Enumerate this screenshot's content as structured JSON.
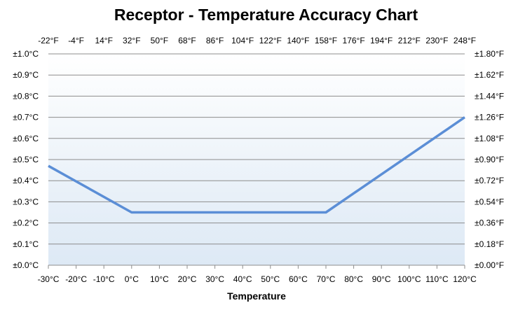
{
  "chart_data": {
    "type": "line",
    "title": "Receptor - Temperature Accuracy Chart",
    "xlabel": "Temperature",
    "ylabel": "",
    "x_ticks_bottom": [
      "-30°C",
      "-20°C",
      "-10°C",
      "0°C",
      "10°C",
      "20°C",
      "30°C",
      "40°C",
      "50°C",
      "60°C",
      "70°C",
      "80°C",
      "90°C",
      "100°C",
      "110°C",
      "120°C"
    ],
    "x_ticks_top": [
      "-22°F",
      "-4°F",
      "14°F",
      "32°F",
      "50°F",
      "68°F",
      "86°F",
      "104°F",
      "122°F",
      "140°F",
      "158°F",
      "176°F",
      "194°F",
      "212°F",
      "230°F",
      "248°F"
    ],
    "y_ticks_left": [
      "±0.0°C",
      "±0.1°C",
      "±0.2°C",
      "±0.3°C",
      "±0.4°C",
      "±0.5°C",
      "±0.6°C",
      "±0.7°C",
      "±0.8°C",
      "±0.9°C",
      "±1.0°C"
    ],
    "y_ticks_right": [
      "±0.00°F",
      "±0.18°F",
      "±0.36°F",
      "±0.54°F",
      "±0.72°F",
      "±0.90°F",
      "±1.08°F",
      "±1.26°F",
      "±1.44°F",
      "±1.62°F",
      "±1.80°F"
    ],
    "xlim": [
      -30,
      120
    ],
    "ylim": [
      0,
      1.0
    ],
    "grid": true,
    "legend": "none",
    "line_color": "#5b8ed6",
    "series": [
      {
        "x": [
          -30,
          0,
          70,
          120
        ],
        "y": [
          0.47,
          0.25,
          0.25,
          0.7
        ]
      }
    ]
  }
}
